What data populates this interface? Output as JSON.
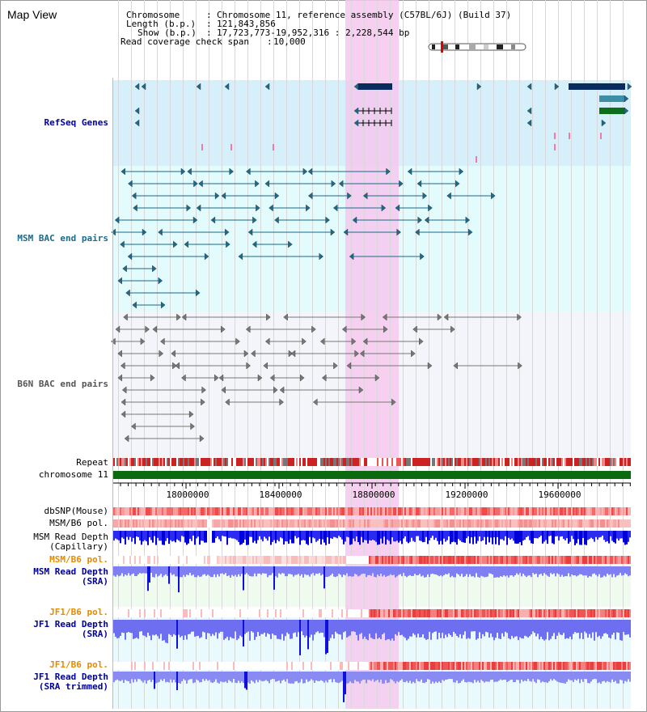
{
  "panel_title": "Map View",
  "header": {
    "chromosome_label": "Chromosome",
    "chromosome_value": "Chromosome 11, reference assembly (C57BL/6J) (Build 37)",
    "length_label": "Length (b.p.)",
    "length_value": "121,843,856",
    "show_label": "Show (b.p.)",
    "show_value": "17,723,773-19,952,316 : 2,228,544 bp",
    "coverage_label": "Read coverage check span",
    "coverage_value": "10,000"
  },
  "tracks": {
    "refseq": "RefSeq Genes",
    "msm_bac": "MSM BAC end pairs",
    "b6n_bac": "B6N BAC end pairs",
    "repeat": "Repeat",
    "chromosome": "chromosome 11",
    "dbsnp": "dbSNP(Mouse)",
    "msm_b6_pol_1": "MSM/B6 pol.",
    "msm_read_depth_cap_1": "MSM Read Depth",
    "msm_read_depth_cap_2": "(Capillary)",
    "msm_b6_pol_2": "MSM/B6 pol.",
    "msm_read_depth_sra_1": "MSM Read Depth",
    "msm_read_depth_sra_2": "(SRA)",
    "jf1_b6_pol_1": "JF1/B6 pol.",
    "jf1_read_depth_sra_1": "JF1 Read Depth",
    "jf1_read_depth_sra_2": "(SRA)",
    "jf1_b6_pol_2": "JF1/B6 pol.",
    "jf1_read_depth_trim_1": "JF1 Read Depth",
    "jf1_read_depth_trim_2": "(SRA trimmed)"
  },
  "axis": {
    "ticks": [
      "18000000",
      "18400000",
      "18800000",
      "19200000",
      "19600000"
    ]
  },
  "colors": {
    "highlight": "#f6c8ee",
    "refseq_bg": "#d6f0fb",
    "msm_bg": "#e2fbfc",
    "b6n_bg": "#f4f4fb",
    "gene_dark": "#0a2b5e",
    "gene_teal": "#3d8fa8",
    "gene_green": "#0c6e1c",
    "bac_msm": "#1b6a8a",
    "bac_b6n": "#777777",
    "chrom_green": "#0b6a10",
    "snp_red": "#e8424a",
    "depth_blue": "#1a1aee",
    "depth_light": "#8080f0",
    "label_blue": "#000099",
    "label_orange": "#e68a00"
  }
}
